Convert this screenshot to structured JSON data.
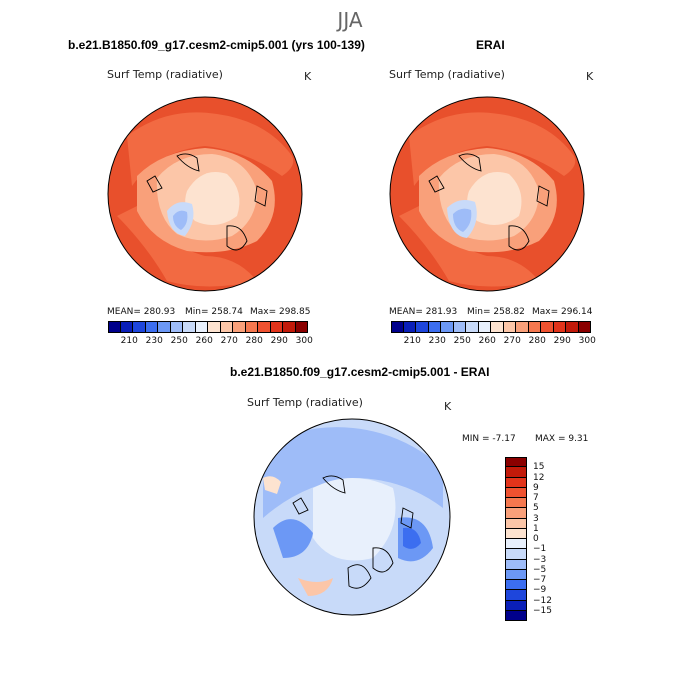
{
  "page_title": "JJA",
  "panels": [
    {
      "case_title": "b.e21.B1850.f09_g17.cesm2-cmip5.001 (yrs 100-139)",
      "var_label": "Surf Temp (radiative)",
      "units": "K",
      "stats": {
        "mean": "MEAN= 280.93",
        "min": "Min= 258.74",
        "max": "Max= 298.85"
      }
    },
    {
      "case_title": "ERAI",
      "var_label": "Surf Temp (radiative)",
      "units": "K",
      "stats": {
        "mean": "MEAN= 281.93",
        "min": "Min= 258.82",
        "max": "Max= 296.14"
      }
    }
  ],
  "diff_panel": {
    "case_title": "b.e21.B1850.f09_g17.cesm2-cmip5.001 - ERAI",
    "var_label": "Surf Temp (radiative)",
    "units": "K",
    "stats": {
      "min": "MIN =   -7.17",
      "max": "MAX =    9.31"
    }
  },
  "abs_colorbar": {
    "tick_labels": [
      "210",
      "230",
      "250",
      "260",
      "270",
      "280",
      "290",
      "300"
    ],
    "colors": [
      "#00008b",
      "#0a1fb8",
      "#1e46dc",
      "#3c6ef0",
      "#6c98f5",
      "#9ebcf8",
      "#c8daf9",
      "#e8f0fc",
      "#fde3d0",
      "#fcc6a8",
      "#f9a07a",
      "#f5784f",
      "#ef5230",
      "#e2341b",
      "#c21a0a",
      "#8b0000"
    ]
  },
  "diff_colorbar": {
    "tick_labels": [
      "15",
      "12",
      "9",
      "7",
      "5",
      "3",
      "1",
      "0",
      "−1",
      "−3",
      "−5",
      "−7",
      "−9",
      "−12",
      "−15"
    ],
    "colors": [
      "#8b0000",
      "#c21a0a",
      "#e2341b",
      "#ef5230",
      "#f5784f",
      "#f9a07a",
      "#fcc6a8",
      "#fde3d0",
      "#e8f0fc",
      "#c8daf9",
      "#9ebcf8",
      "#6c98f5",
      "#3c6ef0",
      "#1e46dc",
      "#0a1fb8",
      "#00008b"
    ]
  },
  "map_colors": {
    "warm_outer": "#e8502c",
    "warm_mid": "#f26a42",
    "warm_light": "#f9a07a",
    "peach": "#fcc6a8",
    "pale": "#fde3d0",
    "cool_light": "#c8daf9",
    "cool_mid": "#9ebcf8",
    "cool_dark": "#6c98f5",
    "cool_deep": "#3c6ef0",
    "diff_base": "#c8daf9",
    "diff_pale": "#e8f0fc"
  }
}
